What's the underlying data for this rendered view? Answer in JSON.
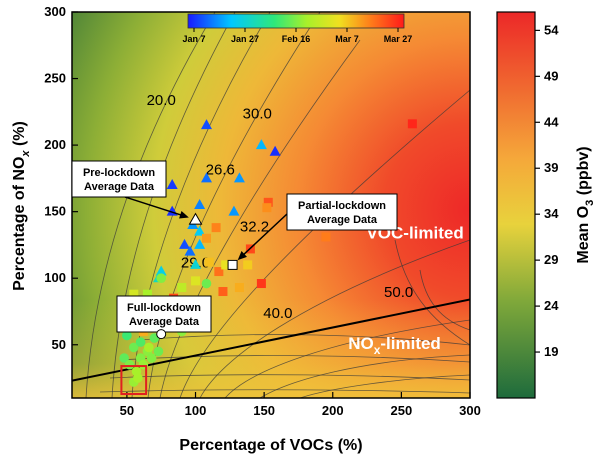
{
  "chart_data": {
    "type": "scatter",
    "xlabel": "Percentage of VOCs (%)",
    "ylabel": "Percentage of NO",
    "ylabel_sub": "x",
    "ylabel_tail": " (%)",
    "xlim": [
      10,
      300
    ],
    "ylim": [
      10,
      300
    ],
    "x_ticks": [
      50,
      100,
      150,
      200,
      250,
      300
    ],
    "y_ticks": [
      50,
      100,
      150,
      200,
      250,
      300
    ],
    "colorbar": {
      "label": "Mean O",
      "label_sub": "3",
      "label_tail": " (ppbv)",
      "range": [
        14,
        56
      ],
      "ticks": [
        19,
        24,
        29,
        34,
        39,
        44,
        49,
        54
      ],
      "colors": [
        "#1e6b3c",
        "#7fa83a",
        "#e8d23c",
        "#f5a83a",
        "#f06a30",
        "#ec2828"
      ]
    },
    "date_bar": {
      "ticks": [
        "Jan 7",
        "Jan 27",
        "Feb 16",
        "Mar 7",
        "Mar 27"
      ],
      "colors": [
        "#1a1aff",
        "#00c8ff",
        "#2ee87a",
        "#a8f02a",
        "#f0e020",
        "#ff7a1a",
        "#ff1a1a"
      ]
    },
    "contour_labels": [
      {
        "text": "20.0",
        "x": 75,
        "y": 230
      },
      {
        "text": "30.0",
        "x": 145,
        "y": 220
      },
      {
        "text": "26.6",
        "x": 118,
        "y": 178
      },
      {
        "text": "32.2",
        "x": 143,
        "y": 135
      },
      {
        "text": "29.0",
        "x": 100,
        "y": 108
      },
      {
        "text": "40.0",
        "x": 160,
        "y": 70
      },
      {
        "text": "50.0",
        "x": 248,
        "y": 86
      }
    ],
    "ridge_line": {
      "x": [
        10,
        300
      ],
      "y": [
        23,
        84
      ]
    },
    "regions": [
      {
        "text": "VOC-limited",
        "x": 260,
        "y": 130
      },
      {
        "text": "NO",
        "sub": "x",
        "tail": "-limited",
        "x": 245,
        "y": 47
      }
    ],
    "annotations": [
      {
        "lines": [
          "Pre-lockdown",
          "Average Data"
        ],
        "point": [
          100,
          144
        ]
      },
      {
        "lines": [
          "Partial-lockdown",
          "Average Data"
        ],
        "point": [
          127,
          110
        ]
      },
      {
        "lines": [
          "Full-lockdown",
          "Average Data"
        ],
        "point": [
          75,
          58
        ]
      }
    ],
    "average_points": [
      {
        "name": "Pre-lockdown",
        "marker": "triangle",
        "x": 100,
        "y": 144
      },
      {
        "name": "Partial-lockdown",
        "marker": "square",
        "x": 127,
        "y": 110
      },
      {
        "name": "Full-lockdown",
        "marker": "circle",
        "x": 75,
        "y": 58
      }
    ],
    "highlight_box": {
      "x": [
        46,
        64
      ],
      "y": [
        13,
        34
      ]
    },
    "series": [
      {
        "marker": "triangle",
        "points": [
          {
            "x": 108,
            "y": 215,
            "t": 0.05
          },
          {
            "x": 148,
            "y": 200,
            "t": 0.15
          },
          {
            "x": 158,
            "y": 195,
            "t": 0.02
          },
          {
            "x": 83,
            "y": 170,
            "t": 0.03
          },
          {
            "x": 108,
            "y": 175,
            "t": 0.08
          },
          {
            "x": 132,
            "y": 175,
            "t": 0.12
          },
          {
            "x": 83,
            "y": 150,
            "t": 0.02
          },
          {
            "x": 103,
            "y": 155,
            "t": 0.1
          },
          {
            "x": 128,
            "y": 150,
            "t": 0.12
          },
          {
            "x": 98,
            "y": 140,
            "t": 0.12
          },
          {
            "x": 103,
            "y": 135,
            "t": 0.18
          },
          {
            "x": 92,
            "y": 125,
            "t": 0.05
          },
          {
            "x": 96,
            "y": 120,
            "t": 0.08
          },
          {
            "x": 103,
            "y": 125,
            "t": 0.15
          },
          {
            "x": 75,
            "y": 105,
            "t": 0.2
          },
          {
            "x": 73,
            "y": 100,
            "t": 0.25
          },
          {
            "x": 100,
            "y": 110,
            "t": 0.22
          }
        ]
      },
      {
        "marker": "square",
        "points": [
          {
            "x": 258,
            "y": 216,
            "t": 0.98
          },
          {
            "x": 153,
            "y": 157,
            "t": 0.9
          },
          {
            "x": 152,
            "y": 153,
            "t": 0.8
          },
          {
            "x": 140,
            "y": 122,
            "t": 0.92
          },
          {
            "x": 108,
            "y": 130,
            "t": 0.78
          },
          {
            "x": 115,
            "y": 138,
            "t": 0.82
          },
          {
            "x": 195,
            "y": 131,
            "t": 0.83
          },
          {
            "x": 117,
            "y": 105,
            "t": 0.85
          },
          {
            "x": 110,
            "y": 112,
            "t": 0.72
          },
          {
            "x": 122,
            "y": 110,
            "t": 0.65
          },
          {
            "x": 138,
            "y": 110,
            "t": 0.7
          },
          {
            "x": 148,
            "y": 96,
            "t": 0.95
          },
          {
            "x": 132,
            "y": 93,
            "t": 0.75
          },
          {
            "x": 120,
            "y": 90,
            "t": 0.88
          },
          {
            "x": 100,
            "y": 98,
            "t": 0.62
          },
          {
            "x": 84,
            "y": 85,
            "t": 0.92
          },
          {
            "x": 82,
            "y": 72,
            "t": 0.97
          },
          {
            "x": 90,
            "y": 78,
            "t": 0.8
          },
          {
            "x": 78,
            "y": 82,
            "t": 0.6
          },
          {
            "x": 95,
            "y": 75,
            "t": 0.58
          },
          {
            "x": 55,
            "y": 88,
            "t": 0.6
          },
          {
            "x": 50,
            "y": 78,
            "t": 0.55
          },
          {
            "x": 65,
            "y": 88,
            "t": 0.5
          },
          {
            "x": 62,
            "y": 60,
            "t": 0.75
          },
          {
            "x": 70,
            "y": 80,
            "t": 0.45
          },
          {
            "x": 90,
            "y": 93,
            "t": 0.55
          }
        ]
      },
      {
        "marker": "circle",
        "points": [
          {
            "x": 50,
            "y": 57,
            "t": 0.35
          },
          {
            "x": 55,
            "y": 48,
            "t": 0.42
          },
          {
            "x": 60,
            "y": 52,
            "t": 0.38
          },
          {
            "x": 48,
            "y": 40,
            "t": 0.4
          },
          {
            "x": 52,
            "y": 35,
            "t": 0.44
          },
          {
            "x": 65,
            "y": 45,
            "t": 0.46
          },
          {
            "x": 70,
            "y": 55,
            "t": 0.4
          },
          {
            "x": 80,
            "y": 65,
            "t": 0.45
          },
          {
            "x": 72,
            "y": 68,
            "t": 0.42
          },
          {
            "x": 85,
            "y": 72,
            "t": 0.38
          },
          {
            "x": 80,
            "y": 80,
            "t": 0.4
          },
          {
            "x": 92,
            "y": 80,
            "t": 0.44
          },
          {
            "x": 75,
            "y": 100,
            "t": 0.45
          },
          {
            "x": 108,
            "y": 96,
            "t": 0.42
          },
          {
            "x": 60,
            "y": 40,
            "t": 0.45
          },
          {
            "x": 62,
            "y": 35,
            "t": 0.48
          },
          {
            "x": 57,
            "y": 30,
            "t": 0.5
          },
          {
            "x": 55,
            "y": 22,
            "t": 0.48
          },
          {
            "x": 58,
            "y": 25,
            "t": 0.5
          },
          {
            "x": 68,
            "y": 40,
            "t": 0.45
          },
          {
            "x": 73,
            "y": 45,
            "t": 0.42
          },
          {
            "x": 90,
            "y": 60,
            "t": 0.46
          },
          {
            "x": 66,
            "y": 48,
            "t": 0.5
          },
          {
            "x": 95,
            "y": 82,
            "t": 0.4
          }
        ]
      }
    ]
  }
}
